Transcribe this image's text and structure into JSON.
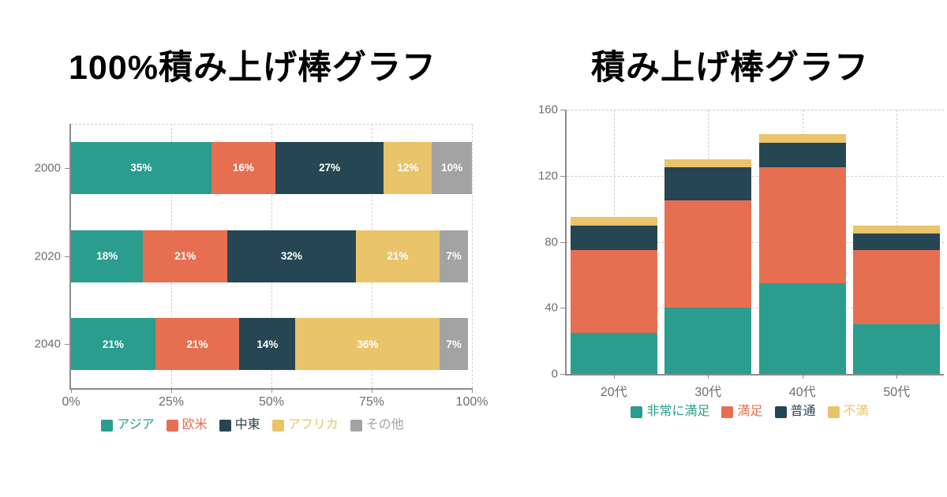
{
  "background": "#ffffff",
  "chart_data": [
    {
      "id": "percent-stacked-bar",
      "type": "bar",
      "orientation": "horizontal",
      "stacked": "percent",
      "title": "100%積み上げ棒グラフ",
      "categories": [
        "2000",
        "2020",
        "2040"
      ],
      "series": [
        {
          "name": "アジア",
          "color": "#2a9d8f",
          "values": [
            35,
            18,
            21
          ]
        },
        {
          "name": "欧米",
          "color": "#e76f51",
          "values": [
            16,
            21,
            21
          ]
        },
        {
          "name": "中東",
          "color": "#264653",
          "values": [
            27,
            32,
            14
          ]
        },
        {
          "name": "アフリカ",
          "color": "#e9c46a",
          "values": [
            12,
            21,
            36
          ]
        },
        {
          "name": "その他",
          "color": "#a3a3a3",
          "values": [
            10,
            7,
            7
          ]
        }
      ],
      "x_ticks": [
        "0%",
        "25%",
        "50%",
        "75%",
        "100%"
      ],
      "xlim": [
        0,
        100
      ],
      "label_suffix": "%",
      "grid": "dashed",
      "legend_position": "bottom"
    },
    {
      "id": "stacked-bar",
      "type": "bar",
      "orientation": "vertical",
      "stacked": true,
      "title": "積み上げ棒グラフ",
      "categories": [
        "20代",
        "30代",
        "40代",
        "50代"
      ],
      "series": [
        {
          "name": "非常に満足",
          "color": "#2a9d8f",
          "values": [
            25,
            40,
            55,
            30
          ]
        },
        {
          "name": "満足",
          "color": "#e76f51",
          "values": [
            50,
            65,
            70,
            45
          ]
        },
        {
          "name": "普通",
          "color": "#264653",
          "values": [
            15,
            20,
            15,
            10
          ]
        },
        {
          "name": "不満",
          "color": "#e9c46a",
          "values": [
            5,
            5,
            5,
            5
          ]
        }
      ],
      "y_ticks": [
        0,
        40,
        80,
        120,
        160
      ],
      "ylim": [
        0,
        160
      ],
      "grid": "dashed",
      "legend_position": "bottom"
    }
  ]
}
